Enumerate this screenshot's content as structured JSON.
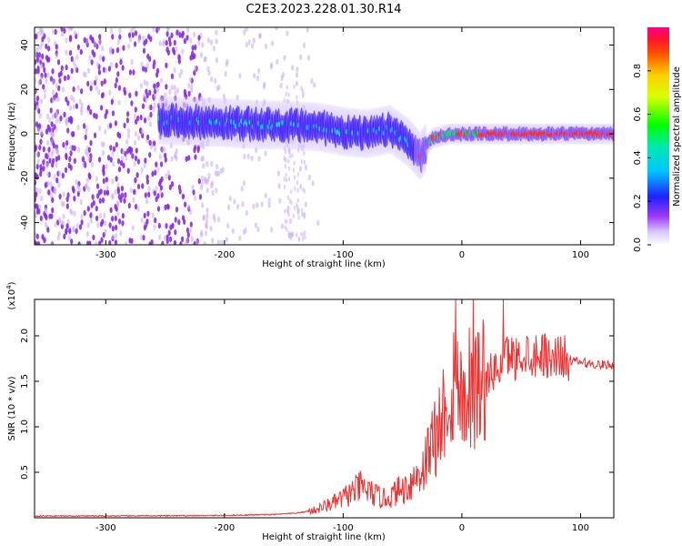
{
  "title": "C2E3.2023.228.01.30.R14",
  "chart_data": [
    {
      "type": "heatmap",
      "xlabel": "Height of straight line (km)",
      "ylabel": "Frequency (Hz)",
      "xlim": [
        -360,
        128
      ],
      "ylim": [
        -50,
        48
      ],
      "x_ticks": [
        -300,
        -200,
        -100,
        0,
        100
      ],
      "y_ticks": [
        -40,
        -20,
        0,
        20,
        40
      ],
      "colorbar": {
        "label": "Normalized spectral amplitude",
        "range": [
          0,
          1
        ],
        "ticks": [
          0.0,
          0.2,
          0.4,
          0.6,
          0.8
        ],
        "colormap": "rainbow"
      },
      "ridge": [
        {
          "x": -250,
          "f": 6
        },
        {
          "x": -200,
          "f": 5
        },
        {
          "x": -170,
          "f": 4
        },
        {
          "x": -150,
          "f": 4
        },
        {
          "x": -120,
          "f": 3
        },
        {
          "x": -100,
          "f": 1
        },
        {
          "x": -80,
          "f": 0
        },
        {
          "x": -60,
          "f": 2
        },
        {
          "x": -45,
          "f": -4
        },
        {
          "x": -35,
          "f": -10
        },
        {
          "x": -25,
          "f": -2
        },
        {
          "x": -10,
          "f": 0
        },
        {
          "x": 0,
          "f": 0
        },
        {
          "x": 20,
          "f": 0
        },
        {
          "x": 60,
          "f": 0
        },
        {
          "x": 100,
          "f": 0
        },
        {
          "x": 128,
          "f": 0
        }
      ],
      "grid": false
    },
    {
      "type": "line",
      "xlabel": "Height of straight line (km)",
      "ylabel": "SNR (10 * v/v)",
      "y_multiplier": "(x10",
      "y_multiplier_exp": "4",
      "y_multiplier_close": ")",
      "xlim": [
        -360,
        128
      ],
      "ylim": [
        0,
        24000
      ],
      "x_ticks": [
        -300,
        -200,
        -100,
        0,
        100
      ],
      "y_ticks": [
        5000,
        10000,
        15000,
        20000
      ],
      "y_tick_labels": [
        "0.5",
        "1.0",
        "1.5",
        "2.0"
      ],
      "line_color": "#ee3030",
      "x": [
        -360,
        -300,
        -250,
        -200,
        -160,
        -140,
        -125,
        -115,
        -105,
        -100,
        -95,
        -90,
        -85,
        -80,
        -75,
        -70,
        -65,
        -60,
        -55,
        -50,
        -45,
        -40,
        -35,
        -30,
        -25,
        -20,
        -15,
        -12,
        -10,
        -7,
        -5,
        0,
        5,
        10,
        15,
        20,
        25,
        30,
        35,
        40,
        45,
        50,
        55,
        60,
        65,
        70,
        75,
        80,
        85,
        90,
        95,
        100,
        110,
        120,
        128
      ],
      "y": [
        200,
        200,
        220,
        260,
        350,
        500,
        800,
        1300,
        1800,
        2200,
        2600,
        3000,
        3400,
        3000,
        2600,
        2300,
        2100,
        2300,
        2900,
        3100,
        3600,
        4300,
        5000,
        6400,
        8100,
        9900,
        12000,
        13500,
        13000,
        15000,
        14500,
        13500,
        15000,
        13800,
        15500,
        15000,
        16000,
        16200,
        17500,
        18000,
        17500,
        18000,
        18200,
        17800,
        18300,
        18000,
        17600,
        17900,
        17700,
        17400,
        17200,
        17100,
        16900,
        16800,
        16800
      ],
      "grid": false
    }
  ]
}
